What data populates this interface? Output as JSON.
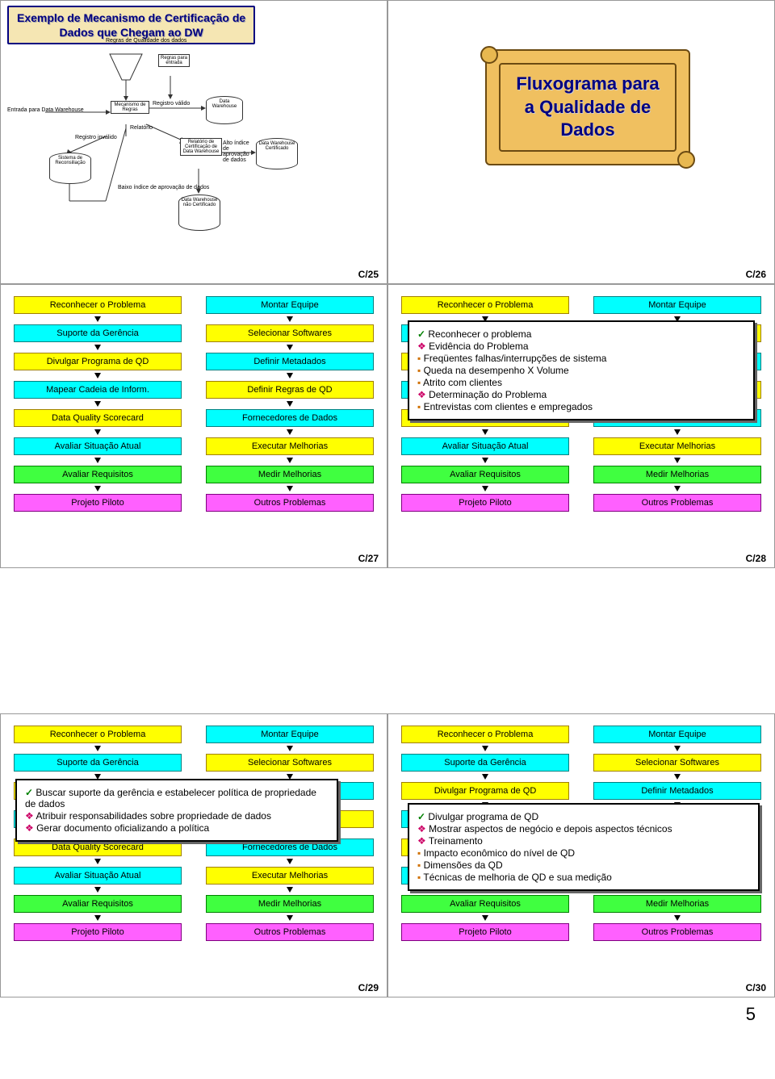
{
  "colors": {
    "yellow": {
      "bg": "#ffff00",
      "border": "#a08000"
    },
    "cyan": {
      "bg": "#00ffff",
      "border": "#008080"
    },
    "green": {
      "bg": "#40ff40",
      "border": "#008000"
    },
    "magenta": {
      "bg": "#ff60ff",
      "border": "#800080"
    }
  },
  "slide25": {
    "title": "Exemplo de Mecanismo de Certificação de\nDados que Chegam ao DW",
    "footer": "C/25",
    "labels": {
      "regras_qd": "Regras de Qualidade\ndos dados",
      "regras_entrada": "Regras\npara\nentrada",
      "entrada_dw": "Entrada para Data Warehouse",
      "mecanismo": "Mecanismo\nde Regras",
      "registro_valido": "Registro válido",
      "dw": "Data\nWarehouse",
      "relatorio": "Relatório",
      "registro_invalido": "Registro inválido",
      "relatorio_cert": "Relatório de\nCertificação\nde Data\nWarehouse",
      "alto_indice": "Alto índice de\naprovação de\ndados",
      "dw_cert": "Data\nWarehouse\nCertificado",
      "sistema_rec": "Sistema de\nReconsiliação",
      "baixo_indice": "Baixo índice de aprovação de dados",
      "dw_nao_cert": "Data\nWarehouse\nnão\nCertificado"
    }
  },
  "slide26": {
    "title": "Fluxograma para\na Qualidade de\nDados",
    "footer": "C/26"
  },
  "flow_left": [
    {
      "text": "Reconhecer o Problema",
      "c": "yellow"
    },
    {
      "text": "Suporte da Gerência",
      "c": "cyan"
    },
    {
      "text": "Divulgar Programa de QD",
      "c": "yellow"
    },
    {
      "text": "Mapear Cadeia de Inform.",
      "c": "cyan"
    },
    {
      "text": "Data Quality Scorecard",
      "c": "yellow"
    },
    {
      "text": "Avaliar Situação Atual",
      "c": "cyan"
    },
    {
      "text": "Avaliar Requisitos",
      "c": "green"
    },
    {
      "text": "Projeto Piloto",
      "c": "magenta"
    }
  ],
  "flow_right": [
    {
      "text": "Montar Equipe",
      "c": "cyan"
    },
    {
      "text": "Selecionar Softwares",
      "c": "yellow"
    },
    {
      "text": "Definir Metadados",
      "c": "cyan"
    },
    {
      "text": "Definir Regras de QD",
      "c": "yellow"
    },
    {
      "text": "Fornecedores de Dados",
      "c": "cyan"
    },
    {
      "text": "Executar Melhorias",
      "c": "yellow"
    },
    {
      "text": "Medir Melhorias",
      "c": "green"
    },
    {
      "text": "Outros Problemas",
      "c": "magenta"
    }
  ],
  "slide27": {
    "footer": "C/27"
  },
  "slide28": {
    "footer": "C/28",
    "popup": {
      "l1": "Reconhecer o problema",
      "l2": "Evidência do Problema",
      "l3": "Freqüentes falhas/interrupções de sistema",
      "l4": "Queda na desempenho X Volume",
      "l5": "Atrito com clientes",
      "l6": "Determinação do Problema",
      "l7": "Entrevistas com clientes e empregados"
    }
  },
  "slide29": {
    "footer": "C/29",
    "popup": {
      "l1": "Buscar suporte da gerência e estabelecer política de propriedade de dados",
      "l2": "Atribuir responsabilidades sobre propriedade de dados",
      "l3": "Gerar documento oficializando a política"
    }
  },
  "slide30": {
    "footer": "C/30",
    "popup": {
      "l1": "Divulgar programa de QD",
      "l2": "Mostrar aspectos de negócio e depois aspectos técnicos",
      "l3": "Treinamento",
      "l4": "Impacto econômico do nível de QD",
      "l5": "Dimensões da QD",
      "l6": "Técnicas de melhoria de QD e sua medição"
    }
  },
  "pagenum": "5"
}
